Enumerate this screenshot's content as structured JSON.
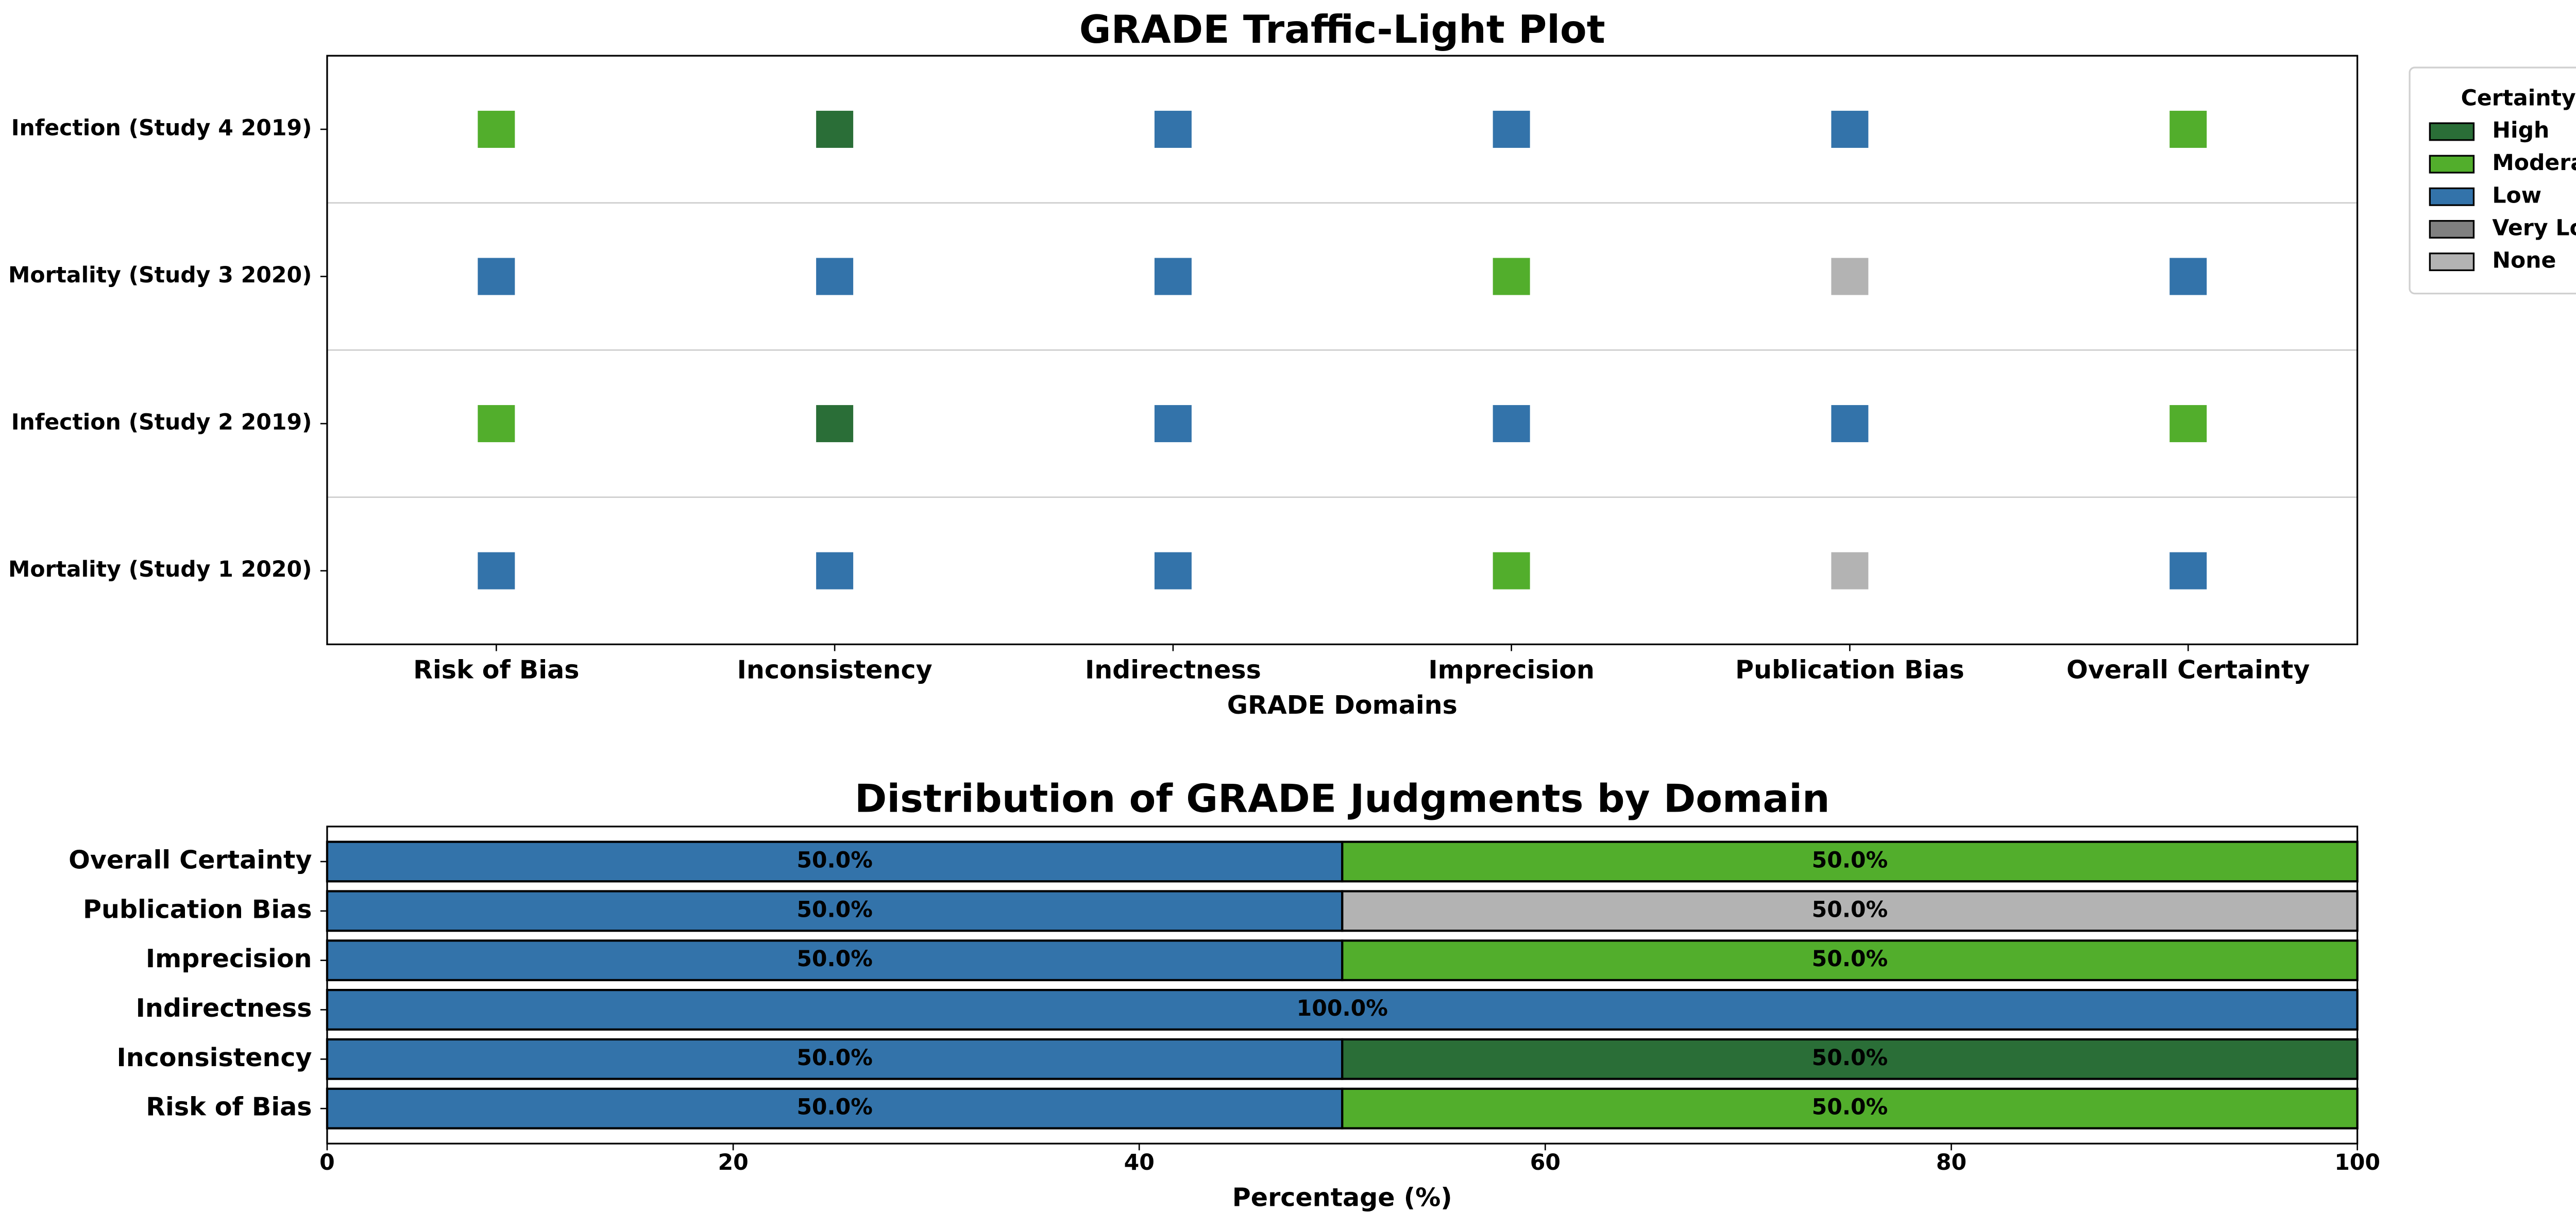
{
  "chart_data": [
    {
      "type": "trafficlight",
      "title": "GRADE Traffic-Light Plot",
      "x_label": "GRADE Domains",
      "columns": [
        "Risk of Bias",
        "Inconsistency",
        "Indirectness",
        "Imprecision",
        "Publication Bias",
        "Overall Certainty"
      ],
      "rows": [
        "Mortality (Study 1 2020)",
        "Infection (Study 2 2019)",
        "Mortality (Study 3 2020)",
        "Infection (Study 4 2019)"
      ],
      "cells": [
        [
          "Low",
          "Low",
          "Low",
          "Moderate",
          "None",
          "Low"
        ],
        [
          "Moderate",
          "High",
          "Low",
          "Low",
          "Low",
          "Moderate"
        ],
        [
          "Low",
          "Low",
          "Low",
          "Moderate",
          "None",
          "Low"
        ],
        [
          "Moderate",
          "High",
          "Low",
          "Low",
          "Low",
          "Moderate"
        ]
      ],
      "levels": [
        {
          "name": "High",
          "color": "#2a6e37"
        },
        {
          "name": "Moderate",
          "color": "#52ae2c"
        },
        {
          "name": "Low",
          "color": "#3373aa"
        },
        {
          "name": "Very Low",
          "color": "#808080"
        },
        {
          "name": "None",
          "color": "#b3b3b3"
        }
      ],
      "legend": {
        "title": "Certainty",
        "position": "right"
      }
    },
    {
      "type": "stackedbarh",
      "title": "Distribution of GRADE Judgments by Domain",
      "x_label": "Percentage (%)",
      "categories": [
        "Risk of Bias",
        "Inconsistency",
        "Indirectness",
        "Imprecision",
        "Publication Bias",
        "Overall Certainty"
      ],
      "series": [
        {
          "name": "Low",
          "color": "#3373aa",
          "values": [
            50,
            50,
            100,
            50,
            50,
            50
          ],
          "value_labels": [
            "50.0%",
            "50.0%",
            "100.0%",
            "50.0%",
            "50.0%",
            "50.0%"
          ]
        },
        {
          "name": "Moderate",
          "color": "#52ae2c",
          "values": [
            50,
            0,
            0,
            50,
            0,
            50
          ],
          "value_labels": [
            "50.0%",
            null,
            null,
            "50.0%",
            null,
            "50.0%"
          ]
        },
        {
          "name": "High",
          "color": "#2a6e37",
          "values": [
            0,
            50,
            0,
            0,
            0,
            0
          ],
          "value_labels": [
            null,
            "50.0%",
            null,
            null,
            null,
            null
          ]
        },
        {
          "name": "None",
          "color": "#b3b3b3",
          "values": [
            0,
            0,
            0,
            0,
            50,
            0
          ],
          "value_labels": [
            null,
            null,
            null,
            null,
            "50.0%",
            null
          ]
        }
      ],
      "xlim": [
        0,
        100
      ],
      "xticks": [
        0,
        20,
        40,
        60,
        80,
        100
      ]
    }
  ]
}
